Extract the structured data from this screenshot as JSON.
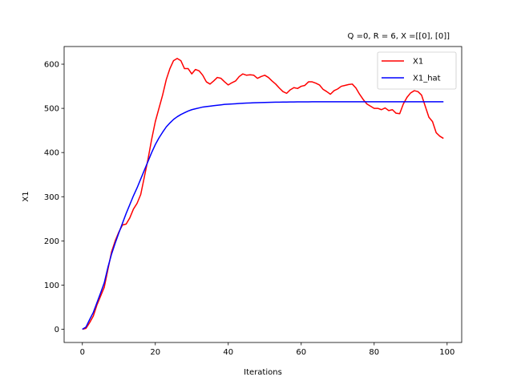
{
  "chart_data": {
    "type": "line",
    "title": "Q =0, R = 6, X =[[0], [0]]",
    "xlabel": "Iterations",
    "ylabel": "X1",
    "xlim": [
      -5,
      104
    ],
    "ylim": [
      -30,
      640
    ],
    "xticks": [
      0,
      20,
      40,
      60,
      80,
      100
    ],
    "yticks": [
      0,
      100,
      200,
      300,
      400,
      500,
      600
    ],
    "grid": false,
    "legend_position": "upper right",
    "series": [
      {
        "name": "X1",
        "color": "#ff0000",
        "x": [
          0,
          1,
          2,
          3,
          4,
          5,
          6,
          7,
          8,
          9,
          10,
          11,
          12,
          13,
          14,
          15,
          16,
          17,
          18,
          19,
          20,
          21,
          22,
          23,
          24,
          25,
          26,
          27,
          28,
          29,
          30,
          31,
          32,
          33,
          34,
          35,
          36,
          37,
          38,
          39,
          40,
          41,
          42,
          43,
          44,
          45,
          46,
          47,
          48,
          49,
          50,
          51,
          52,
          53,
          54,
          55,
          56,
          57,
          58,
          59,
          60,
          61,
          62,
          63,
          64,
          65,
          66,
          67,
          68,
          69,
          70,
          71,
          72,
          73,
          74,
          75,
          76,
          77,
          78,
          79,
          80,
          81,
          82,
          83,
          84,
          85,
          86,
          87,
          88,
          89,
          90,
          91,
          92,
          93,
          94,
          95,
          96,
          97,
          98,
          99
        ],
        "y": [
          0,
          2,
          15,
          30,
          55,
          75,
          95,
          135,
          175,
          200,
          220,
          236,
          238,
          252,
          272,
          285,
          305,
          345,
          385,
          430,
          470,
          500,
          530,
          565,
          590,
          608,
          613,
          608,
          590,
          590,
          578,
          588,
          585,
          575,
          560,
          555,
          562,
          570,
          568,
          560,
          553,
          558,
          562,
          572,
          578,
          575,
          576,
          575,
          568,
          572,
          575,
          570,
          562,
          555,
          546,
          538,
          534,
          542,
          547,
          545,
          550,
          552,
          560,
          560,
          557,
          553,
          543,
          538,
          532,
          540,
          544,
          550,
          552,
          554,
          555,
          546,
          532,
          520,
          510,
          505,
          500,
          500,
          497,
          501,
          495,
          497,
          489,
          488,
          510,
          525,
          535,
          540,
          538,
          530,
          505,
          480,
          470,
          445,
          437,
          432
        ]
      },
      {
        "name": "X1_hat",
        "color": "#0000ff",
        "x": [
          0,
          1,
          2,
          3,
          4,
          5,
          6,
          7,
          8,
          9,
          10,
          11,
          12,
          13,
          14,
          15,
          16,
          17,
          18,
          19,
          20,
          21,
          22,
          23,
          24,
          25,
          26,
          27,
          28,
          29,
          30,
          31,
          32,
          33,
          34,
          35,
          36,
          37,
          38,
          39,
          40,
          41,
          42,
          43,
          44,
          45,
          46,
          47,
          48,
          49,
          50,
          51,
          52,
          53,
          54,
          55,
          56,
          57,
          58,
          59,
          60,
          61,
          62,
          63,
          64,
          65,
          66,
          67,
          68,
          69,
          70,
          71,
          72,
          73,
          74,
          75,
          76,
          77,
          78,
          79,
          80,
          81,
          82,
          83,
          84,
          85,
          86,
          87,
          88,
          89,
          90,
          91,
          92,
          93,
          94,
          95,
          96,
          97,
          98,
          99
        ],
        "y": [
          0,
          5,
          22,
          38,
          60,
          82,
          105,
          140,
          170,
          195,
          218,
          240,
          262,
          282,
          302,
          320,
          340,
          360,
          380,
          400,
          418,
          433,
          446,
          458,
          467,
          475,
          481,
          486,
          490,
          494,
          497,
          499,
          501,
          503,
          504,
          505,
          506,
          507,
          508,
          509,
          509.5,
          510,
          510.5,
          511,
          511.5,
          512,
          512.3,
          512.6,
          513,
          513.2,
          513.4,
          513.6,
          513.8,
          514,
          514.1,
          514.2,
          514.3,
          514.4,
          514.5,
          514.6,
          514.7,
          514.8,
          514.8,
          514.9,
          514.9,
          515,
          515,
          515,
          515,
          515,
          515,
          515,
          515,
          515,
          515,
          515,
          515,
          515,
          515,
          515,
          515,
          515,
          515,
          515,
          515,
          515,
          515,
          515,
          515,
          515,
          515,
          515,
          515,
          515,
          515,
          515,
          515,
          515,
          515,
          515
        ]
      }
    ]
  }
}
